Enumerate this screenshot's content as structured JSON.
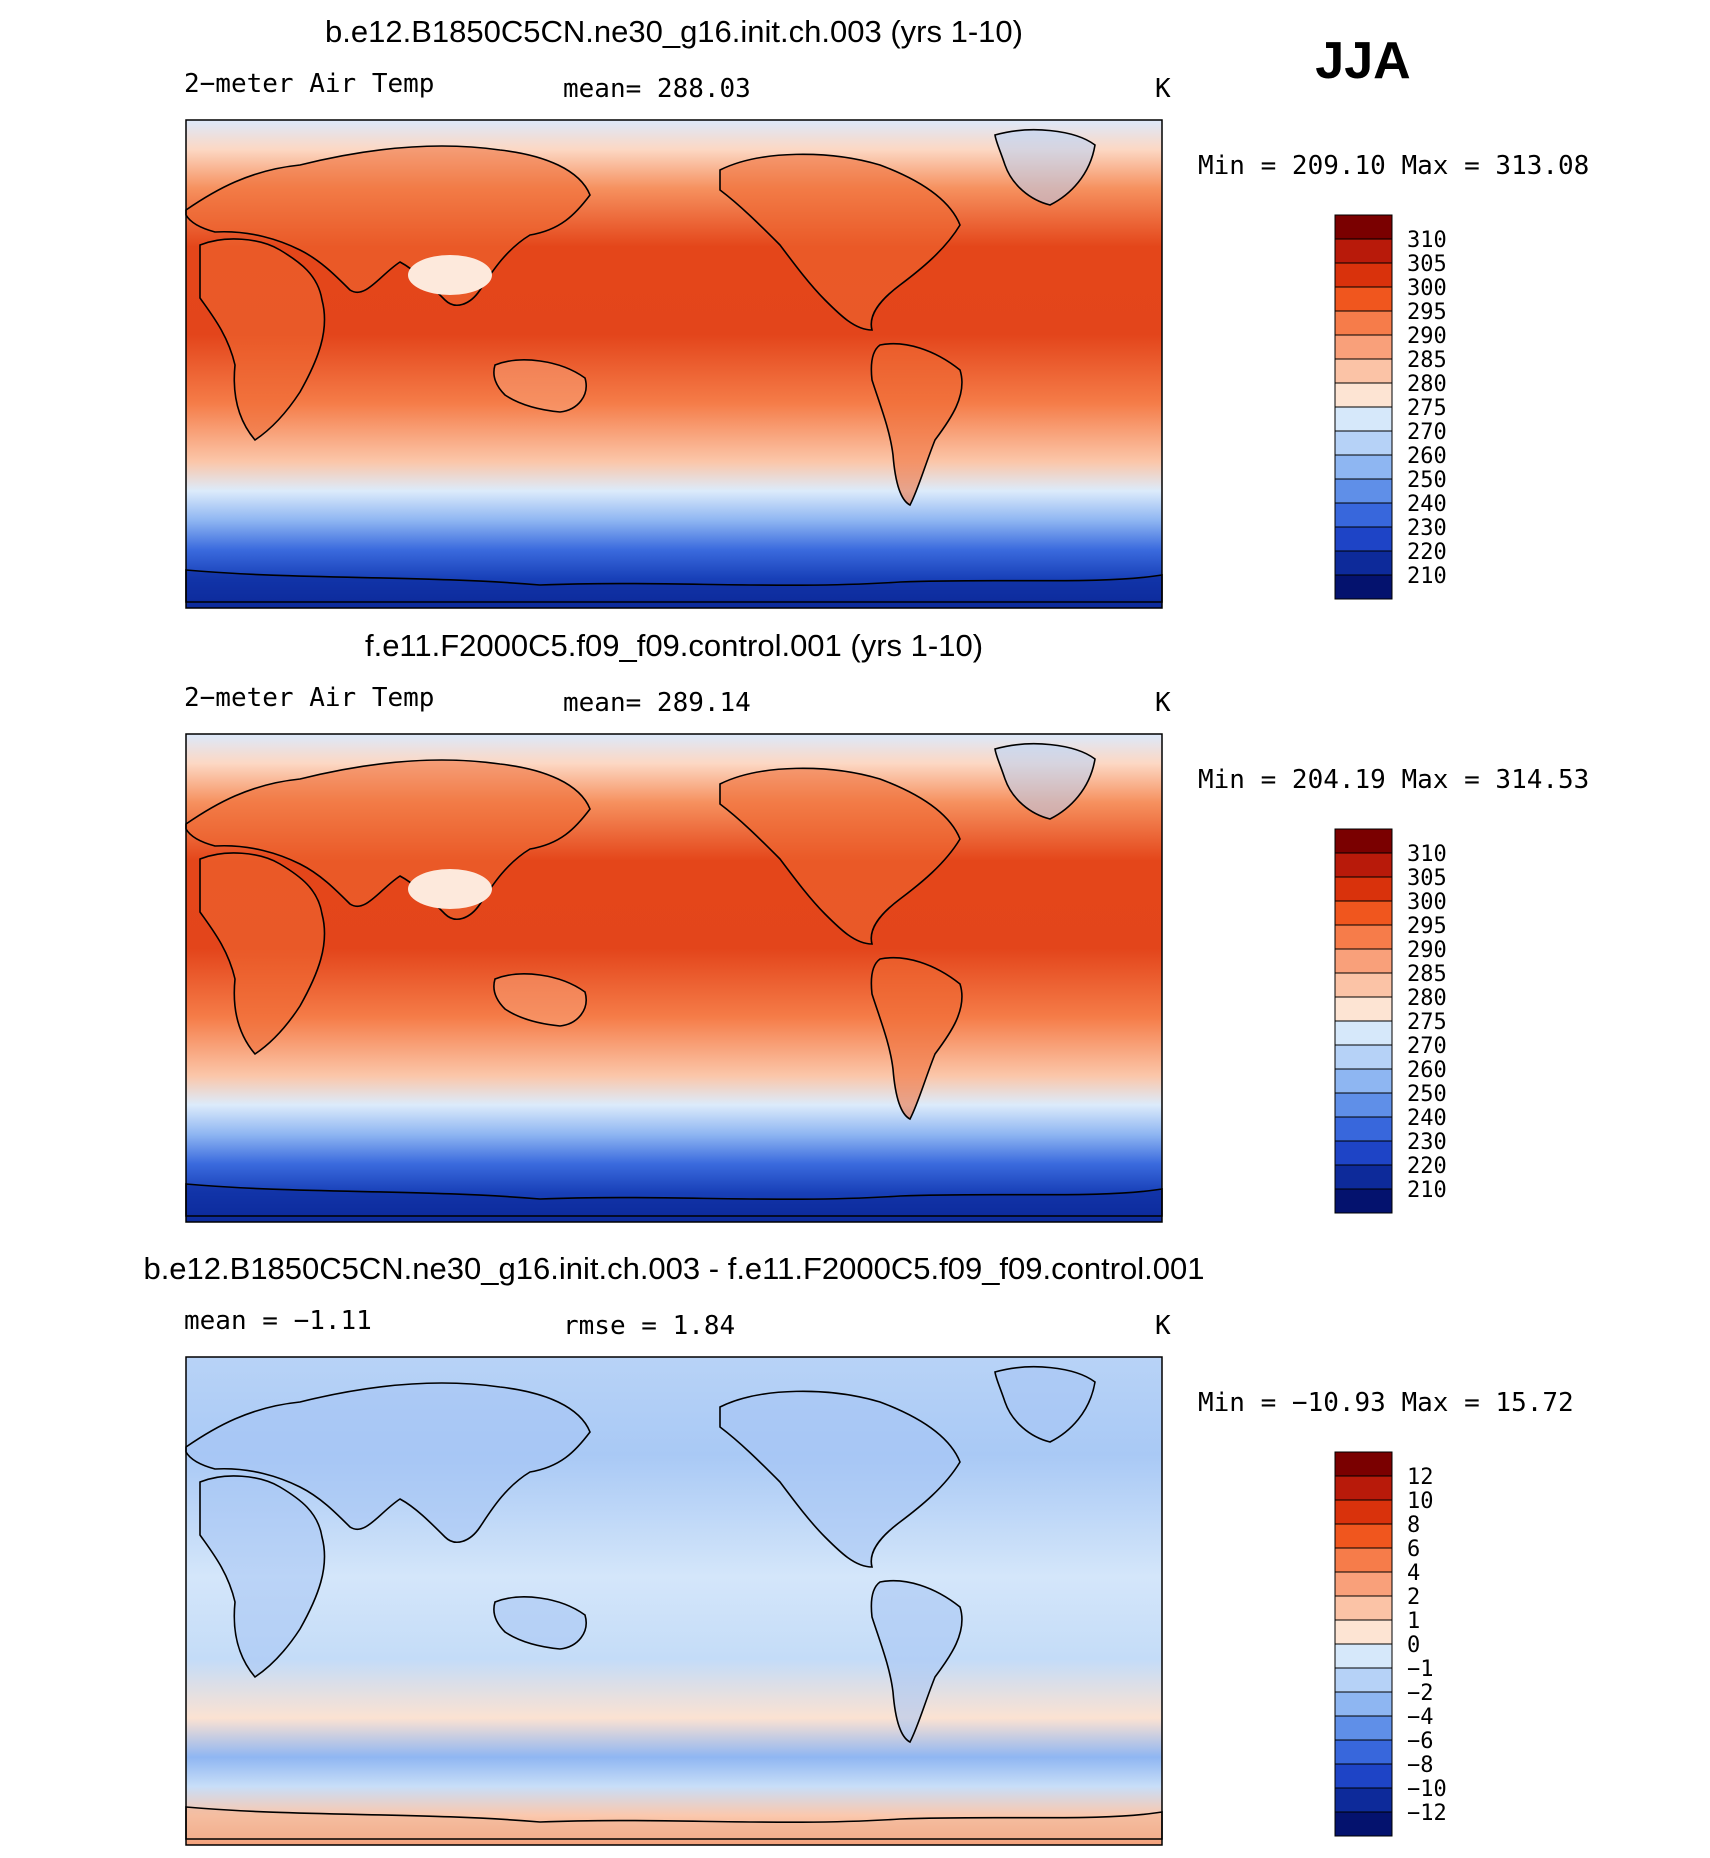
{
  "season": "JJA",
  "chart_data": [
    {
      "type": "heatmap",
      "title": "b.e12.B1850C5CN.ne30_g16.init.ch.003 (yrs 1-10)",
      "variable": "2−meter Air Temp",
      "stat_text": "mean=  288.03",
      "units": "K",
      "minmax_text": "Min  =  209.10  Max  =  313.08",
      "min": 209.1,
      "max": 313.08,
      "mean": 288.03,
      "colorbar": {
        "levels": [
          "310",
          "305",
          "300",
          "295",
          "290",
          "285",
          "280",
          "275",
          "270",
          "260",
          "250",
          "240",
          "230",
          "220",
          "210"
        ],
        "colors": [
          "#7a0000",
          "#b81a0a",
          "#d9320c",
          "#f0561e",
          "#f67c4a",
          "#f9a07a",
          "#fbc3a6",
          "#fde4d3",
          "#d6e8fa",
          "#b6d2f7",
          "#8eb6f2",
          "#5f8fe8",
          "#3867dc",
          "#1e44c6",
          "#0d2a9a",
          "#04126e"
        ]
      },
      "legend_position": "right",
      "grid": false
    },
    {
      "type": "heatmap",
      "title": "f.e11.F2000C5.f09_f09.control.001 (yrs 1-10)",
      "variable": "2−meter Air Temp",
      "stat_text": "mean=  289.14",
      "units": "K",
      "minmax_text": "Min  =  204.19  Max  =  314.53",
      "min": 204.19,
      "max": 314.53,
      "mean": 289.14,
      "colorbar": {
        "levels": [
          "310",
          "305",
          "300",
          "295",
          "290",
          "285",
          "280",
          "275",
          "270",
          "260",
          "250",
          "240",
          "230",
          "220",
          "210"
        ],
        "colors": [
          "#7a0000",
          "#b81a0a",
          "#d9320c",
          "#f0561e",
          "#f67c4a",
          "#f9a07a",
          "#fbc3a6",
          "#fde4d3",
          "#d6e8fa",
          "#b6d2f7",
          "#8eb6f2",
          "#5f8fe8",
          "#3867dc",
          "#1e44c6",
          "#0d2a9a",
          "#04126e"
        ]
      },
      "legend_position": "right",
      "grid": false
    },
    {
      "type": "heatmap",
      "title": "b.e12.B1850C5CN.ne30_g16.init.ch.003 - f.e11.F2000C5.f09_f09.control.001",
      "variable": "mean =   −1.11",
      "stat_text": "rmse =     1.84",
      "units": "K",
      "minmax_text": "Min  =  −10.93  Max  =   15.72",
      "min": -10.93,
      "max": 15.72,
      "mean": -1.11,
      "rmse": 1.84,
      "colorbar": {
        "levels": [
          "12",
          "10",
          "8",
          "6",
          "4",
          "2",
          "1",
          "0",
          "−1",
          "−2",
          "−4",
          "−6",
          "−8",
          "−10",
          "−12"
        ],
        "colors": [
          "#7a0000",
          "#b81a0a",
          "#d9320c",
          "#f0561e",
          "#f67c4a",
          "#f9a07a",
          "#fbc3a6",
          "#fde4d3",
          "#d6e8fa",
          "#b6d2f7",
          "#8eb6f2",
          "#5f8fe8",
          "#3867dc",
          "#1e44c6",
          "#0d2a9a",
          "#04126e"
        ]
      },
      "legend_position": "right",
      "grid": false
    }
  ]
}
